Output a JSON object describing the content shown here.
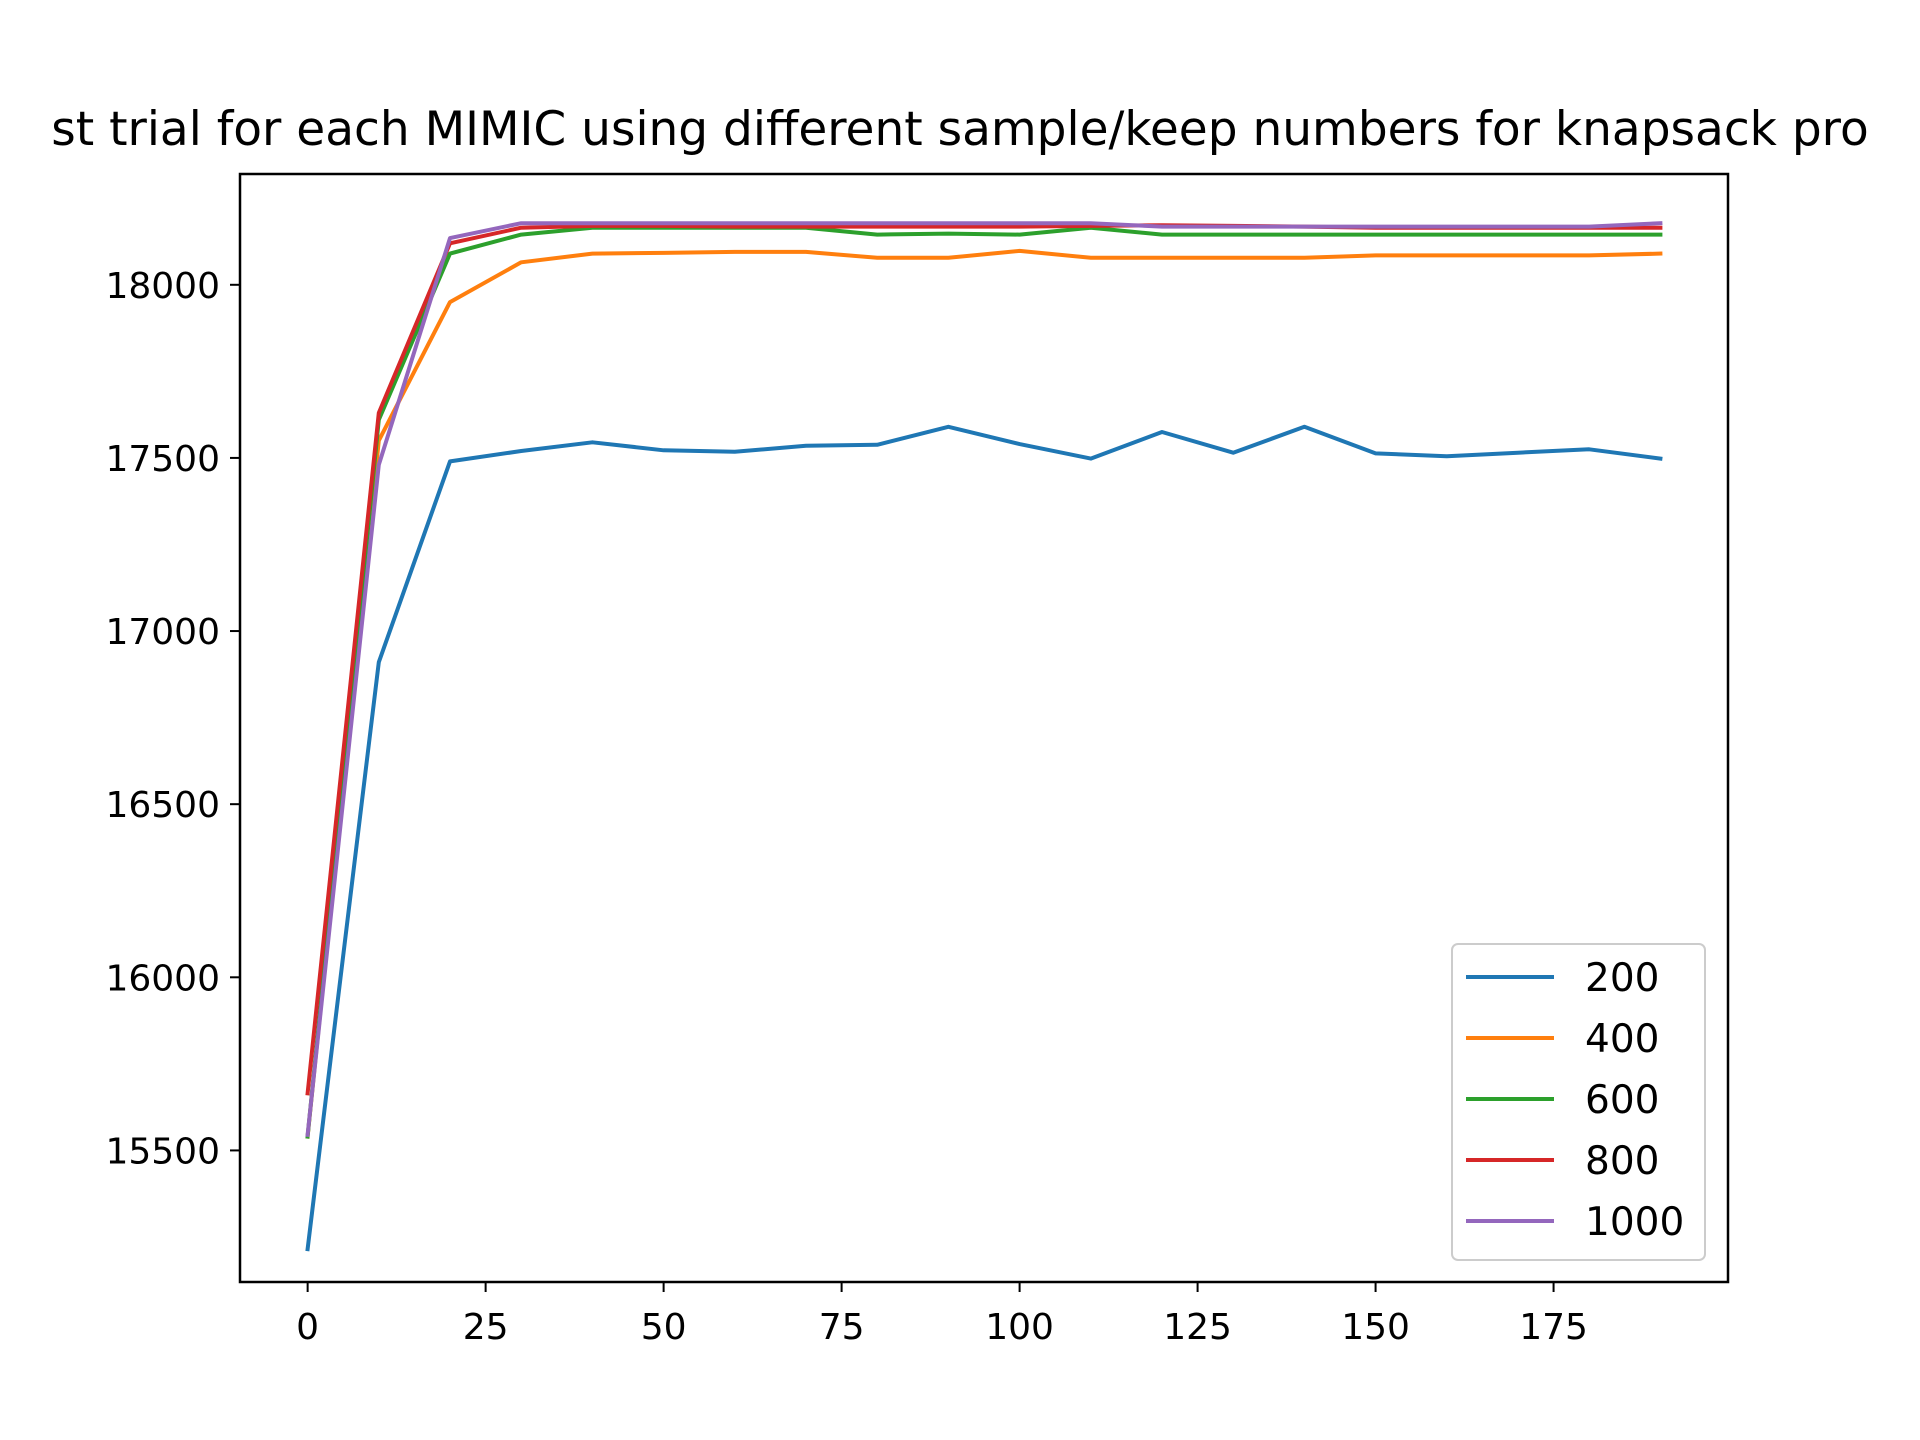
{
  "chart_data": {
    "type": "line",
    "title": "st trial for each MIMIC using different sample/keep numbers for knapsack pro",
    "xlabel": "",
    "ylabel": "",
    "xlim": [
      -9.5,
      199.5
    ],
    "ylim": [
      15120,
      18320
    ],
    "x_ticks": [
      0,
      25,
      50,
      75,
      100,
      125,
      150,
      175
    ],
    "y_ticks": [
      15500,
      16000,
      16500,
      17000,
      17500,
      18000
    ],
    "grid": false,
    "legend_position": "lower-right",
    "x": [
      0,
      10,
      20,
      30,
      40,
      50,
      60,
      70,
      80,
      90,
      100,
      110,
      120,
      130,
      140,
      150,
      160,
      170,
      180,
      190
    ],
    "series": [
      {
        "name": "200",
        "color": "#1f77b4",
        "values": [
          15215,
          16910,
          17490,
          17520,
          17545,
          17522,
          17518,
          17535,
          17538,
          17590,
          17540,
          17498,
          17575,
          17515,
          17590,
          17513,
          17505,
          17515,
          17525,
          17498
        ]
      },
      {
        "name": "400",
        "color": "#ff7f0e",
        "values": [
          15540,
          17550,
          17950,
          18065,
          18090,
          18092,
          18095,
          18095,
          18078,
          18078,
          18098,
          18078,
          18078,
          18078,
          18078,
          18085,
          18085,
          18085,
          18085,
          18090
        ]
      },
      {
        "name": "600",
        "color": "#2ca02c",
        "values": [
          15540,
          17610,
          18090,
          18145,
          18165,
          18165,
          18165,
          18165,
          18145,
          18148,
          18145,
          18165,
          18145,
          18145,
          18145,
          18145,
          18145,
          18145,
          18145,
          18145
        ]
      },
      {
        "name": "800",
        "color": "#d62728",
        "values": [
          15665,
          17630,
          18120,
          18165,
          18170,
          18170,
          18168,
          18168,
          18168,
          18168,
          18168,
          18170,
          18172,
          18170,
          18168,
          18165,
          18165,
          18165,
          18165,
          18165
        ]
      },
      {
        "name": "1000",
        "color": "#9467bd",
        "values": [
          15545,
          17480,
          18135,
          18178,
          18178,
          18178,
          18178,
          18178,
          18178,
          18178,
          18178,
          18178,
          18168,
          18168,
          18168,
          18168,
          18168,
          18168,
          18168,
          18178
        ]
      }
    ]
  }
}
